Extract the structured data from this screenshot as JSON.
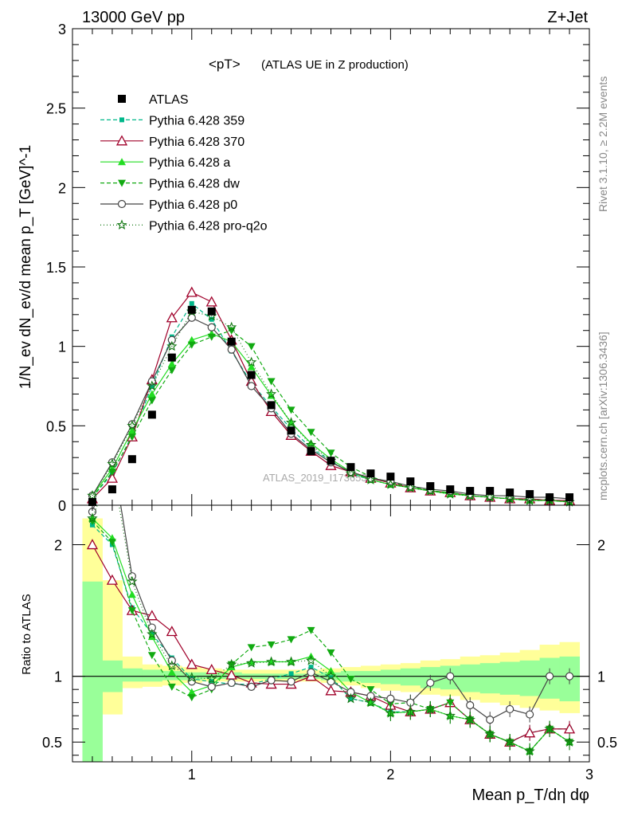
{
  "header": {
    "left": "13000 GeV pp",
    "right": "Z+Jet"
  },
  "plot_title_main": "<pT>",
  "plot_title_sub": "(ATLAS UE in Z production)",
  "side_text_top": "Rivet 3.1.10, ≥ 2.2M events",
  "side_text_bottom": "mcplots.cern.ch [arXiv:1306.3436]",
  "watermark": "ATLAS_2019_I1736531",
  "upper_ylabel": "1/N_ev dN_ev/d mean p_T [GeV]^-1",
  "lower_ylabel": "Ratio to ATLAS",
  "xlabel": "Mean p_T/dη dφ",
  "colors": {
    "p359": "#00b88a",
    "p370": "#a0002a",
    "pa": "#22dd22",
    "pdw": "#11aa11",
    "pp0": "#444444",
    "pq2o": "#117711",
    "band_yellow": "#ffff99",
    "band_green": "#99ff99"
  },
  "chart_data": [
    {
      "type": "line",
      "panel": "main",
      "xlim": [
        0.4,
        3.0
      ],
      "ylim": [
        0,
        3
      ],
      "xticks": [
        1,
        2,
        3
      ],
      "yticks": [
        0,
        0.5,
        1,
        1.5,
        2,
        2.5,
        3
      ],
      "ytick_labels": [
        "0",
        "0.5",
        "1",
        "1.5",
        "2",
        "2.5",
        "3"
      ],
      "legend_position": "top-left",
      "x": [
        0.5,
        0.6,
        0.7,
        0.8,
        0.9,
        1.0,
        1.1,
        1.2,
        1.3,
        1.4,
        1.5,
        1.6,
        1.7,
        1.8,
        1.9,
        2.0,
        2.1,
        2.2,
        2.3,
        2.4,
        2.5,
        2.6,
        2.7,
        2.8,
        2.9
      ],
      "data": {
        "name": "ATLAS",
        "values": [
          0.02,
          0.1,
          0.29,
          0.57,
          0.93,
          1.23,
          1.22,
          1.03,
          0.82,
          0.63,
          0.47,
          0.34,
          0.28,
          0.24,
          0.2,
          0.18,
          0.15,
          0.12,
          0.1,
          0.09,
          0.09,
          0.08,
          0.07,
          0.05,
          0.05
        ]
      },
      "series": [
        {
          "name": "Pythia 6.428 359",
          "key": "p359",
          "dash": "5,3",
          "marker": "square",
          "values": [
            0.05,
            0.2,
            0.44,
            0.75,
            1.06,
            1.27,
            1.17,
            0.97,
            0.77,
            0.62,
            0.48,
            0.36,
            0.28,
            0.2,
            0.16,
            0.13,
            0.11,
            0.09,
            0.08,
            0.06,
            0.05,
            0.04,
            0.04,
            0.03,
            0.03
          ]
        },
        {
          "name": "Pythia 6.428 370",
          "key": "p370",
          "dash": "",
          "marker": "triangle-open",
          "values": [
            0.04,
            0.17,
            0.43,
            0.79,
            1.18,
            1.34,
            1.28,
            1.04,
            0.78,
            0.59,
            0.44,
            0.34,
            0.25,
            0.21,
            0.17,
            0.14,
            0.11,
            0.09,
            0.08,
            0.06,
            0.05,
            0.04,
            0.04,
            0.03,
            0.03
          ]
        },
        {
          "name": "Pythia 6.428 a",
          "key": "pa",
          "dash": "",
          "marker": "triangle",
          "values": [
            0.06,
            0.23,
            0.47,
            0.7,
            0.89,
            1.04,
            1.08,
            1.03,
            0.87,
            0.69,
            0.52,
            0.39,
            0.29,
            0.21,
            0.16,
            0.13,
            0.11,
            0.09,
            0.07,
            0.06,
            0.05,
            0.04,
            0.03,
            0.03,
            0.02
          ]
        },
        {
          "name": "Pythia 6.428 dw",
          "key": "pdw",
          "dash": "5,3",
          "marker": "triangle-down",
          "values": [
            0.05,
            0.21,
            0.43,
            0.66,
            0.85,
            1.01,
            1.06,
            1.1,
            1.0,
            0.78,
            0.6,
            0.46,
            0.33,
            0.24,
            0.18,
            0.14,
            0.12,
            0.09,
            0.08,
            0.06,
            0.05,
            0.04,
            0.03,
            0.03,
            0.02
          ]
        },
        {
          "name": "Pythia 6.428 p0",
          "key": "pp0",
          "dash": "",
          "marker": "circle-open",
          "values": [
            0.06,
            0.27,
            0.51,
            0.78,
            1.04,
            1.18,
            1.12,
            0.98,
            0.75,
            0.61,
            0.45,
            0.35,
            0.27,
            0.21,
            0.17,
            0.15,
            0.12,
            0.1,
            0.09,
            0.07,
            0.06,
            0.06,
            0.05,
            0.05,
            0.04
          ]
        },
        {
          "name": "Pythia 6.428 pro-q2o",
          "key": "pq2o",
          "dash": "1,3",
          "marker": "star-open",
          "values": [
            0.06,
            0.26,
            0.5,
            0.75,
            1.0,
            1.22,
            1.19,
            1.12,
            0.9,
            0.7,
            0.52,
            0.38,
            0.28,
            0.2,
            0.16,
            0.13,
            0.11,
            0.09,
            0.07,
            0.06,
            0.05,
            0.04,
            0.03,
            0.03,
            0.02
          ]
        }
      ]
    },
    {
      "type": "line",
      "panel": "ratio",
      "xlim": [
        0.4,
        3.0
      ],
      "ylim": [
        0.35,
        2.3
      ],
      "xticks": [
        1,
        2,
        3
      ],
      "xtick_labels": [
        "1",
        "2",
        "3"
      ],
      "yticks": [
        0.5,
        1,
        2
      ],
      "ytick_labels": [
        "0.5",
        "1",
        "2"
      ],
      "bands": {
        "edges": [
          0.45,
          0.55,
          0.65,
          0.75,
          0.85,
          0.95,
          1.05,
          1.15,
          1.25,
          1.35,
          1.45,
          1.55,
          1.65,
          1.75,
          1.85,
          1.95,
          2.05,
          2.15,
          2.25,
          2.35,
          2.45,
          2.55,
          2.65,
          2.75,
          2.85,
          2.95
        ],
        "yellow_lo": [
          0.9,
          0.71,
          0.91,
          0.92,
          0.93,
          0.95,
          0.96,
          0.96,
          0.96,
          0.96,
          0.96,
          0.96,
          0.95,
          0.93,
          0.91,
          0.89,
          0.88,
          0.86,
          0.85,
          0.82,
          0.8,
          0.78,
          0.76,
          0.74,
          0.72
        ],
        "yellow_hi": [
          2.2,
          1.73,
          1.15,
          1.09,
          1.08,
          1.07,
          1.06,
          1.05,
          1.05,
          1.05,
          1.05,
          1.05,
          1.06,
          1.07,
          1.08,
          1.09,
          1.1,
          1.12,
          1.13,
          1.15,
          1.16,
          1.18,
          1.2,
          1.24,
          1.26
        ],
        "green_lo": [
          0.35,
          0.88,
          0.96,
          0.96,
          0.97,
          0.97,
          0.98,
          0.98,
          0.98,
          0.98,
          0.98,
          0.98,
          0.97,
          0.96,
          0.95,
          0.94,
          0.93,
          0.91,
          0.9,
          0.88,
          0.87,
          0.86,
          0.85,
          0.83,
          0.81
        ],
        "green_hi": [
          1.72,
          1.12,
          1.06,
          1.05,
          1.04,
          1.03,
          1.03,
          1.03,
          1.02,
          1.02,
          1.02,
          1.02,
          1.03,
          1.04,
          1.04,
          1.05,
          1.06,
          1.07,
          1.08,
          1.09,
          1.1,
          1.11,
          1.12,
          1.14,
          1.15
        ]
      },
      "series": [
        {
          "key": "p359",
          "values": [
            2.15,
            2.0,
            1.52,
            1.32,
            1.14,
            0.98,
            0.96,
            0.94,
            0.94,
            0.98,
            1.02,
            1.07,
            0.99,
            0.83,
            0.8,
            0.73,
            0.73,
            0.75,
            0.8,
            0.67,
            0.56,
            0.5,
            0.57,
            0.6,
            0.6
          ]
        },
        {
          "key": "p370",
          "values": [
            2.0,
            1.73,
            1.5,
            1.46,
            1.34,
            1.09,
            1.05,
            1.01,
            0.95,
            0.94,
            0.94,
            1.0,
            0.89,
            0.88,
            0.85,
            0.78,
            0.73,
            0.75,
            0.8,
            0.67,
            0.56,
            0.5,
            0.57,
            0.6,
            0.6
          ]
        },
        {
          "key": "pa",
          "values": [
            2.2,
            2.05,
            1.62,
            1.3,
            1.03,
            0.88,
            0.93,
            1.07,
            1.11,
            1.11,
            1.11,
            1.15,
            1.04,
            0.88,
            0.8,
            0.72,
            0.73,
            0.75,
            0.7,
            0.67,
            0.56,
            0.5,
            0.43,
            0.6,
            0.5
          ]
        },
        {
          "key": "pdw",
          "values": [
            2.18,
            2.02,
            1.5,
            1.16,
            0.92,
            0.84,
            0.9,
            1.09,
            1.22,
            1.24,
            1.28,
            1.35,
            1.18,
            0.98,
            0.9,
            0.79,
            0.8,
            0.75,
            0.8,
            0.67,
            0.56,
            0.5,
            0.43,
            0.6,
            0.5
          ]
        },
        {
          "key": "pp0",
          "values": [
            2.25,
            2.7,
            1.76,
            1.37,
            1.12,
            0.96,
            0.92,
            0.95,
            0.92,
            0.97,
            0.96,
            1.03,
            0.96,
            0.88,
            0.85,
            0.83,
            0.8,
            0.95,
            1.0,
            0.78,
            0.67,
            0.75,
            0.71,
            1.0,
            1.0
          ]
        },
        {
          "key": "pq2o",
          "values": [
            2.2,
            2.6,
            1.72,
            1.32,
            1.08,
            0.99,
            0.98,
            1.09,
            1.1,
            1.11,
            1.11,
            1.12,
            1.0,
            0.83,
            0.8,
            0.72,
            0.73,
            0.75,
            0.7,
            0.67,
            0.56,
            0.5,
            0.43,
            0.6,
            0.5
          ]
        }
      ]
    }
  ]
}
